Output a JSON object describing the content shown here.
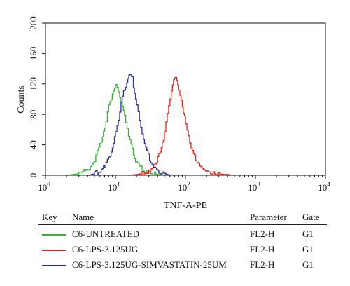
{
  "chart_data": {
    "type": "line",
    "xlabel": "TNF-A-PE",
    "ylabel": "Counts",
    "xscale": "log",
    "xlim": [
      1,
      10000
    ],
    "ylim": [
      0,
      200
    ],
    "xticks": [
      {
        "value": 1,
        "base": "10",
        "exp": "0"
      },
      {
        "value": 10,
        "base": "10",
        "exp": "1"
      },
      {
        "value": 100,
        "base": "10",
        "exp": "2"
      },
      {
        "value": 1000,
        "base": "10",
        "exp": "3"
      },
      {
        "value": 10000,
        "base": "10",
        "exp": "4"
      }
    ],
    "yticks": [
      "0",
      "40",
      "80",
      "120",
      "160",
      "200"
    ],
    "series": [
      {
        "name": "C6-UNTREATED",
        "color": "#2fb82f",
        "x": [
          2,
          3,
          4,
          5,
          6,
          7,
          8,
          9,
          10,
          11,
          12,
          14,
          16,
          18,
          20,
          24,
          28,
          32,
          36,
          40,
          45,
          50,
          60
        ],
        "y": [
          0,
          2,
          8,
          20,
          40,
          65,
          90,
          108,
          117,
          110,
          95,
          70,
          45,
          28,
          16,
          8,
          4,
          3,
          2,
          1,
          1,
          0,
          0
        ]
      },
      {
        "name": "C6-LPS-3.125UG",
        "color": "#e52420",
        "x": [
          15,
          20,
          25,
          30,
          35,
          40,
          45,
          50,
          55,
          60,
          65,
          70,
          75,
          80,
          90,
          100,
          110,
          120,
          140,
          160,
          180,
          200,
          250,
          300,
          350,
          400,
          450
        ],
        "y": [
          0,
          1,
          3,
          6,
          12,
          22,
          35,
          55,
          80,
          100,
          118,
          128,
          125,
          112,
          90,
          70,
          52,
          38,
          22,
          14,
          9,
          6,
          3,
          2,
          1,
          1,
          0
        ]
      },
      {
        "name": "C6-LPS-3.125UG-SIMVASTATIN-25UM",
        "color": "#2e2e9b",
        "x": [
          4,
          5,
          6,
          7,
          8,
          9,
          10,
          11,
          12,
          13,
          14,
          15,
          16,
          17,
          18,
          20,
          22,
          25,
          28,
          32,
          36,
          40,
          45,
          50,
          60
        ],
        "y": [
          0,
          2,
          6,
          12,
          22,
          38,
          55,
          75,
          95,
          110,
          118,
          125,
          135,
          128,
          115,
          95,
          72,
          48,
          30,
          18,
          10,
          6,
          3,
          2,
          0
        ]
      }
    ]
  },
  "legend": {
    "headers": {
      "key": "Key",
      "name": "Name",
      "parameter": "Parameter",
      "gate": "Gate"
    },
    "rows": [
      {
        "name": "C6-UNTREATED",
        "parameter": "FL2-H",
        "gate": "G1",
        "color": "#2fb82f"
      },
      {
        "name": "C6-LPS-3.125UG",
        "parameter": "FL2-H",
        "gate": "G1",
        "color": "#e52420"
      },
      {
        "name": "C6-LPS-3.125UG-SIMVASTATIN-25UM",
        "parameter": "FL2-H",
        "gate": "G1",
        "color": "#2e2e9b"
      }
    ]
  }
}
